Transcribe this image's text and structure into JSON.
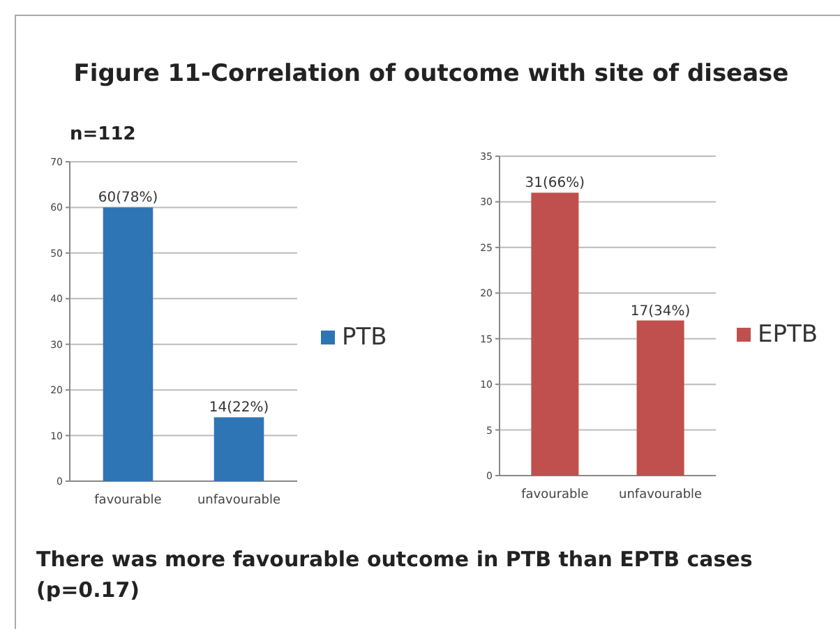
{
  "chart_data": [
    {
      "type": "bar",
      "title": "Figure 11-Correlation of outcome with site of disease",
      "subtitle": "n=112",
      "annotations": [
        "There was more favourable outcome in PTB than EPTB cases (p=0.17)"
      ],
      "categories": [
        "favourable",
        "unfavourable"
      ],
      "series": [
        {
          "name": "PTB",
          "color": "#2e75b6",
          "values": [
            60,
            14
          ],
          "value_labels": [
            "60(78%)",
            "14(22%)"
          ]
        }
      ],
      "ylim": [
        0,
        70
      ],
      "yticks": [
        0,
        10,
        20,
        30,
        40,
        50,
        60,
        70
      ],
      "grid": "y",
      "legend": "right"
    },
    {
      "type": "bar",
      "categories": [
        "favourable",
        "unfavourable"
      ],
      "series": [
        {
          "name": "EPTB",
          "color": "#c0504d",
          "values": [
            31,
            17
          ],
          "value_labels": [
            "31(66%)",
            "17(34%)"
          ]
        }
      ],
      "ylim": [
        0,
        35
      ],
      "yticks": [
        0,
        5,
        10,
        15,
        20,
        25,
        30,
        35
      ],
      "grid": "y",
      "legend": "right"
    }
  ]
}
